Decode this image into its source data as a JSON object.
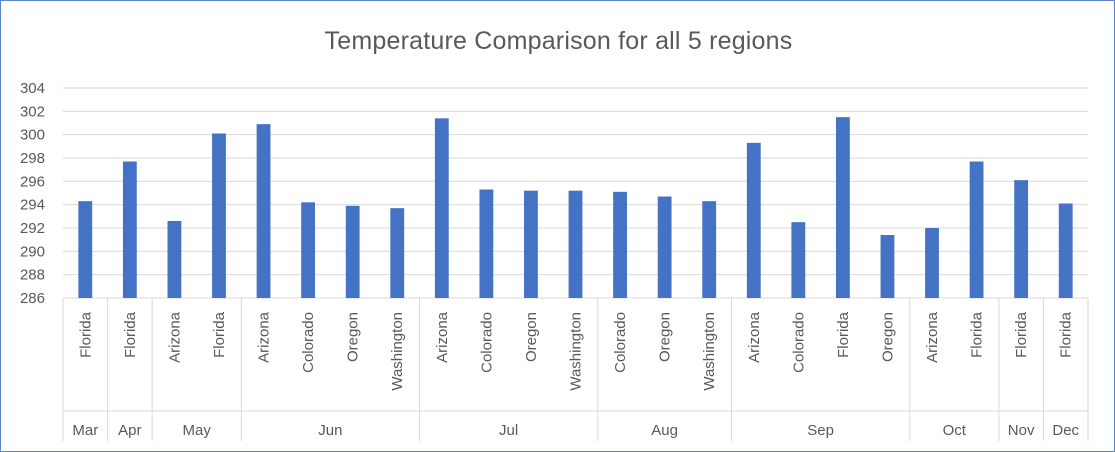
{
  "chart_data": {
    "type": "bar",
    "title": "Temperature  Comparison for all 5 regions",
    "xlabel": "",
    "ylabel": "",
    "ylim": [
      286,
      304
    ],
    "yticks": [
      286,
      288,
      290,
      292,
      294,
      296,
      298,
      300,
      302,
      304
    ],
    "grid": true,
    "bar_color": "#4472c4",
    "categories": [
      {
        "month": "Mar",
        "region": "Florida",
        "value": 294.3
      },
      {
        "month": "Apr",
        "region": "Florida",
        "value": 297.7
      },
      {
        "month": "May",
        "region": "Arizona",
        "value": 292.6
      },
      {
        "month": "May",
        "region": "Florida",
        "value": 300.1
      },
      {
        "month": "Jun",
        "region": "Arizona",
        "value": 300.9
      },
      {
        "month": "Jun",
        "region": "Colorado",
        "value": 294.2
      },
      {
        "month": "Jun",
        "region": "Oregon",
        "value": 293.9
      },
      {
        "month": "Jun",
        "region": "Washington",
        "value": 293.7
      },
      {
        "month": "Jul",
        "region": "Arizona",
        "value": 301.4
      },
      {
        "month": "Jul",
        "region": "Colorado",
        "value": 295.3
      },
      {
        "month": "Jul",
        "region": "Oregon",
        "value": 295.2
      },
      {
        "month": "Jul",
        "region": "Washington",
        "value": 295.2
      },
      {
        "month": "Aug",
        "region": "Colorado",
        "value": 295.1
      },
      {
        "month": "Aug",
        "region": "Oregon",
        "value": 294.7
      },
      {
        "month": "Aug",
        "region": "Washington",
        "value": 294.3
      },
      {
        "month": "Sep",
        "region": "Arizona",
        "value": 299.3
      },
      {
        "month": "Sep",
        "region": "Colorado",
        "value": 292.5
      },
      {
        "month": "Sep",
        "region": "Florida",
        "value": 301.5
      },
      {
        "month": "Sep",
        "region": "Oregon",
        "value": 291.4
      },
      {
        "month": "Oct",
        "region": "Arizona",
        "value": 292.0
      },
      {
        "month": "Oct",
        "region": "Florida",
        "value": 297.7
      },
      {
        "month": "Nov",
        "region": "Florida",
        "value": 296.1
      },
      {
        "month": "Dec",
        "region": "Florida",
        "value": 294.1
      }
    ]
  }
}
